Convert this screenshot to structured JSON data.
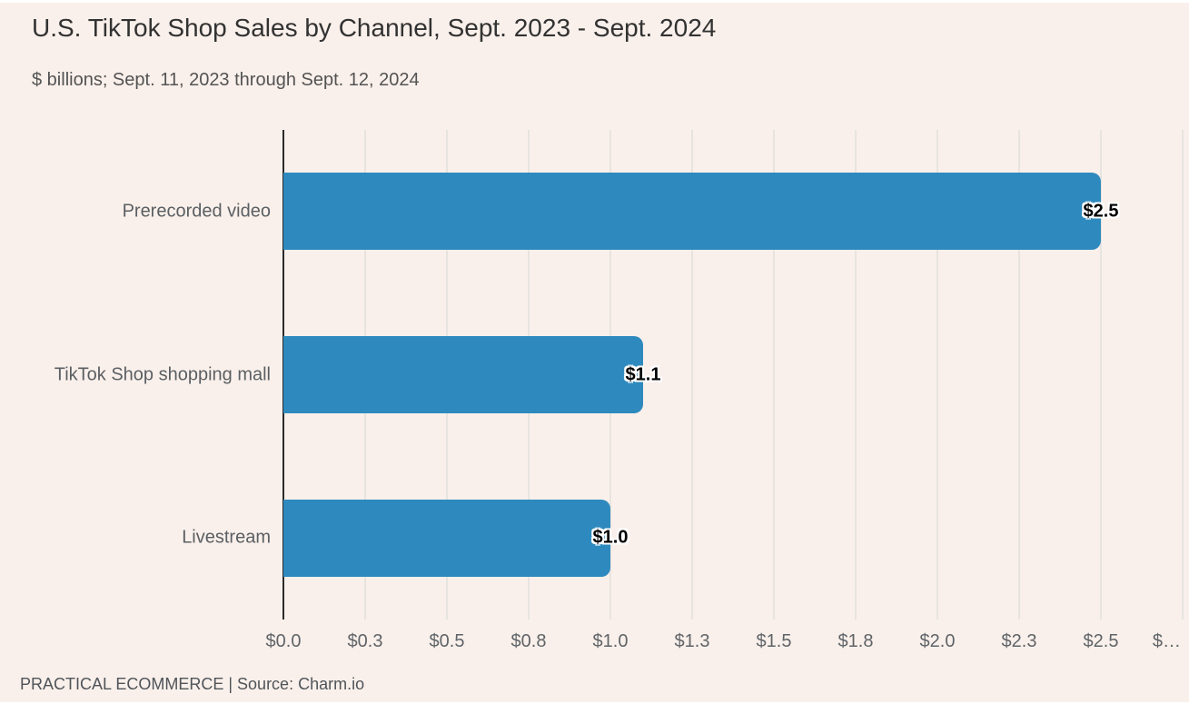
{
  "chart": {
    "title": "U.S. TikTok Shop Sales by Channel, Sept. 2023 - Sept. 2024",
    "subtitle": "$ billions; Sept. 11, 2023 through Sept. 12, 2024",
    "footer": "PRACTICAL ECOMMERCE | Source: Charm.io"
  },
  "chart_data": {
    "type": "bar",
    "orientation": "horizontal",
    "title": "U.S. TikTok Shop Sales by Channel, Sept. 2023 - Sept. 2024",
    "subtitle": "$ billions; Sept. 11, 2023 through Sept. 12, 2024",
    "source_line": "PRACTICAL ECOMMERCE | Source: Charm.io",
    "categories": [
      "Prerecorded video",
      "TikTok Shop shopping mall",
      "Livestream"
    ],
    "values": [
      2.5,
      1.1,
      1.0
    ],
    "value_labels": [
      "$2.5",
      "$1.1",
      "$1.0"
    ],
    "xlabel": "",
    "ylabel": "",
    "xlim": [
      0,
      2.75
    ],
    "x_tick_values": [
      0,
      0.25,
      0.5,
      0.75,
      1.0,
      1.25,
      1.5,
      1.75,
      2.0,
      2.25,
      2.5,
      2.75
    ],
    "x_tick_labels": [
      "$0.0",
      "$0.3",
      "$0.5",
      "$0.8",
      "$1.0",
      "$1.3",
      "$1.5",
      "$1.8",
      "$2.0",
      "$2.3",
      "$2.5",
      "$…"
    ],
    "grid": true,
    "legend": false,
    "colors": {
      "bar": "#2e8abe",
      "background": "#faf0eb",
      "gridline": "#e7e4e0",
      "axis_line": "#2b2b2b",
      "value_label_text": "#000000",
      "title_text": "#323232",
      "label_text": "#5a5f63"
    }
  }
}
